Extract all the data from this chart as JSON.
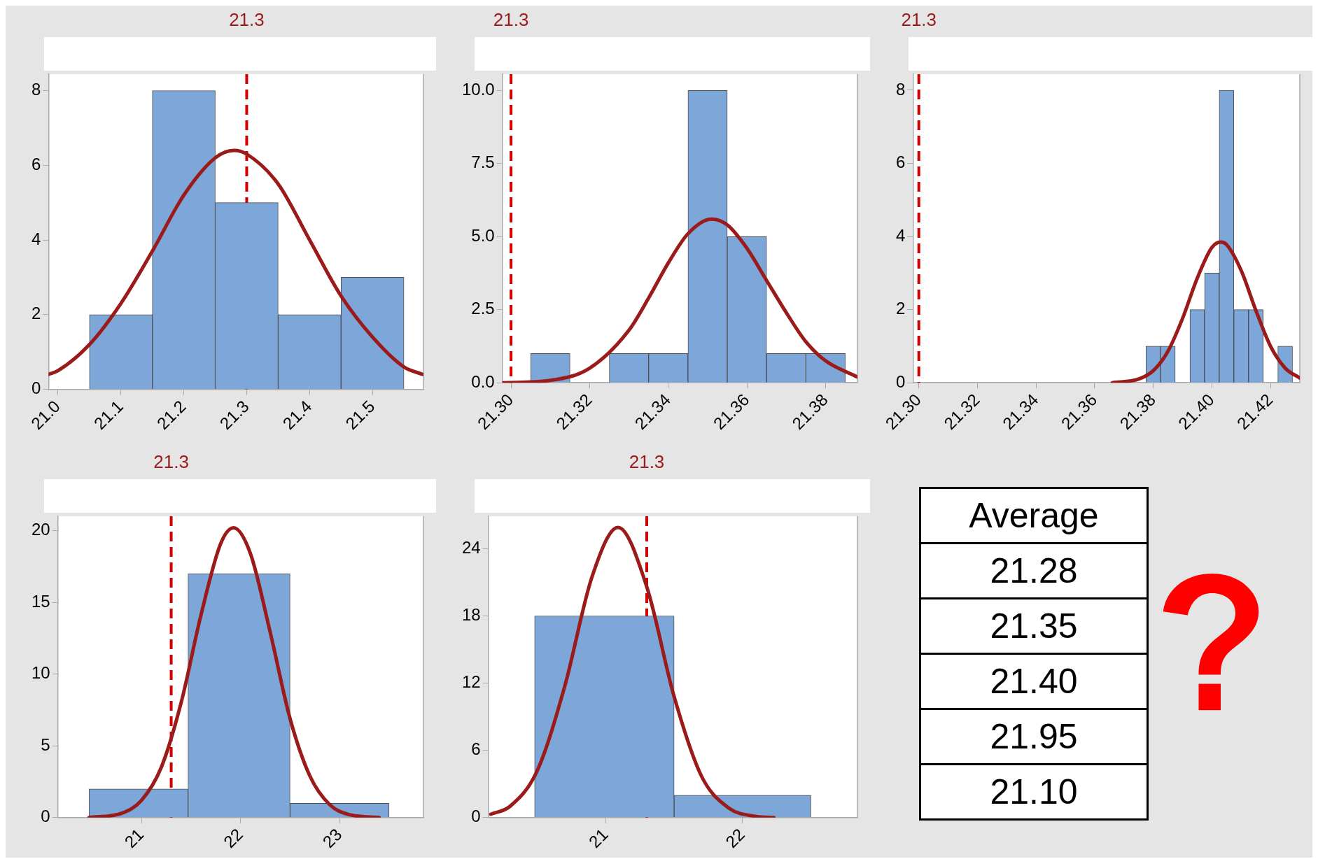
{
  "chart_data": [
    {
      "type": "histogram",
      "bins": [
        21.05,
        21.15,
        21.25,
        21.35,
        21.45,
        21.55
      ],
      "values": [
        2,
        8,
        5,
        2,
        3
      ],
      "color": "#7da7d9",
      "series": [
        {
          "type": "line",
          "color": "#9b1b1b",
          "x": [
            20.985,
            21.0,
            21.05,
            21.1,
            21.15,
            21.2,
            21.25,
            21.28,
            21.3,
            21.35,
            21.4,
            21.45,
            21.5,
            21.55,
            21.58
          ],
          "values": [
            0.4,
            0.5,
            1.2,
            2.3,
            3.7,
            5.2,
            6.2,
            6.4,
            6.3,
            5.5,
            4.0,
            2.5,
            1.4,
            0.6,
            0.4
          ]
        }
      ],
      "ref_lines": [
        {
          "axis": "x",
          "value": 21.3,
          "label": "21.3",
          "color": "#d40000",
          "line_style": "dashed"
        }
      ],
      "xlim": [
        20.985,
        21.581
      ],
      "xticks": [
        {
          "value": 21,
          "label": "21.0"
        },
        21.1,
        21.2,
        21.3,
        21.4,
        21.5
      ],
      "ylim": [
        0,
        8.44
      ],
      "yticks": [
        0,
        2,
        4,
        6,
        8
      ]
    },
    {
      "type": "histogram",
      "bins": [
        21.305,
        21.315,
        21.325,
        21.335,
        21.345,
        21.355,
        21.365,
        21.375,
        21.385
      ],
      "values": [
        1,
        0,
        1,
        1,
        10,
        5,
        1,
        1
      ],
      "color": "#7da7d9",
      "series": [
        {
          "type": "line",
          "color": "#9b1b1b",
          "x": [
            21.298,
            21.31,
            21.32,
            21.33,
            21.335,
            21.34,
            21.345,
            21.351,
            21.355,
            21.36,
            21.365,
            21.37,
            21.375,
            21.38,
            21.388
          ],
          "values": [
            0.0,
            0.08,
            0.5,
            1.8,
            2.9,
            4.1,
            5.1,
            5.6,
            5.4,
            4.6,
            3.5,
            2.4,
            1.4,
            0.75,
            0.2
          ]
        }
      ],
      "ref_lines": [
        {
          "axis": "x",
          "value": 21.3,
          "label": "21.3",
          "color": "#d40000",
          "line_style": "dashed"
        }
      ],
      "xlim": [
        21.2978,
        21.3881
      ],
      "xticks": [
        {
          "value": 21.3,
          "label": "21.30"
        },
        {
          "value": 21.32,
          "label": "21.32"
        },
        {
          "value": 21.34,
          "label": "21.34"
        },
        {
          "value": 21.36,
          "label": "21.36"
        },
        {
          "value": 21.38,
          "label": "21.38"
        }
      ],
      "ylim": [
        0,
        10.56
      ],
      "yticks": [
        {
          "value": 0,
          "label": "0.0"
        },
        2.5,
        {
          "value": 5,
          "label": "5.0"
        },
        7.5,
        {
          "value": 10,
          "label": "10.0"
        }
      ]
    },
    {
      "type": "histogram",
      "bins": [
        21.3775,
        21.3825,
        21.3875,
        21.3925,
        21.3975,
        21.4025,
        21.4075,
        21.4125,
        21.4175,
        21.4225,
        21.4275
      ],
      "values": [
        1,
        1,
        0,
        2,
        3,
        8,
        2,
        2,
        0,
        1
      ],
      "color": "#7da7d9",
      "series": [
        {
          "type": "line",
          "color": "#9b1b1b",
          "x": [
            21.366,
            21.375,
            21.38,
            21.385,
            21.39,
            21.395,
            21.4,
            21.403,
            21.405,
            21.41,
            21.415,
            21.42,
            21.425,
            21.43
          ],
          "values": [
            0.0,
            0.1,
            0.33,
            0.86,
            1.76,
            2.86,
            3.7,
            3.85,
            3.78,
            3.07,
            1.98,
            1.0,
            0.4,
            0.13
          ]
        }
      ],
      "ref_lines": [
        {
          "axis": "x",
          "value": 21.3,
          "label": "21.3",
          "color": "#d40000",
          "line_style": "dashed"
        }
      ],
      "xlim": [
        21.298,
        21.43
      ],
      "xticks": [
        {
          "value": 21.3,
          "label": "21.30"
        },
        {
          "value": 21.32,
          "label": "21.32"
        },
        {
          "value": 21.34,
          "label": "21.34"
        },
        {
          "value": 21.36,
          "label": "21.36"
        },
        {
          "value": 21.38,
          "label": "21.38"
        },
        {
          "value": 21.4,
          "label": "21.40"
        },
        {
          "value": 21.42,
          "label": "21.42"
        }
      ],
      "ylim": [
        0,
        8.44
      ],
      "yticks": [
        0,
        2,
        4,
        6,
        8
      ]
    },
    {
      "type": "histogram",
      "bins": [
        20.47,
        21.47,
        22.5,
        23.5
      ],
      "values": [
        2,
        17,
        1
      ],
      "color": "#7da7d9",
      "series": [
        {
          "type": "line",
          "color": "#9b1b1b",
          "x": [
            20.47,
            20.8,
            21.0,
            21.2,
            21.4,
            21.6,
            21.8,
            21.93,
            22.1,
            22.3,
            22.5,
            22.7,
            22.9,
            23.1,
            23.4
          ],
          "values": [
            0.0,
            0.3,
            1.2,
            3.5,
            8.0,
            14.1,
            19.1,
            20.2,
            18.4,
            12.9,
            6.9,
            2.9,
            0.9,
            0.2,
            0.0
          ]
        }
      ],
      "ref_lines": [
        {
          "axis": "x",
          "value": 21.3,
          "label": "21.3",
          "color": "#d40000",
          "line_style": "dashed"
        }
      ],
      "xlim": [
        20.156,
        23.847
      ],
      "xticks": [
        21,
        22,
        23
      ],
      "ylim": [
        0,
        21
      ],
      "yticks": [
        0,
        5,
        10,
        15,
        20
      ]
    },
    {
      "type": "histogram",
      "bins": [
        20.48,
        21.5,
        22.5
      ],
      "values": [
        18,
        2
      ],
      "color": "#7da7d9",
      "series": [
        {
          "type": "line",
          "color": "#9b1b1b",
          "x": [
            20.16,
            20.3,
            20.5,
            20.7,
            20.9,
            21.09,
            21.3,
            21.5,
            21.7,
            21.9,
            22.1,
            22.23
          ],
          "values": [
            0.3,
            1.0,
            4.2,
            11.7,
            21.5,
            25.9,
            20.6,
            10.8,
            3.7,
            0.85,
            0.1,
            0.0
          ]
        }
      ],
      "ref_lines": [
        {
          "axis": "x",
          "value": 21.3,
          "label": "21.3",
          "color": "#d40000",
          "line_style": "dashed"
        }
      ],
      "xlim": [
        20.142,
        22.84
      ],
      "xticks": [
        21,
        22
      ],
      "ylim": [
        0,
        26.9
      ],
      "yticks": [
        0,
        6,
        12,
        18,
        24
      ]
    },
    {
      "type": "other",
      "title": "Average",
      "annotations": [
        "21.28",
        "21.35",
        "21.40",
        "21.95",
        "21.10"
      ]
    }
  ]
}
